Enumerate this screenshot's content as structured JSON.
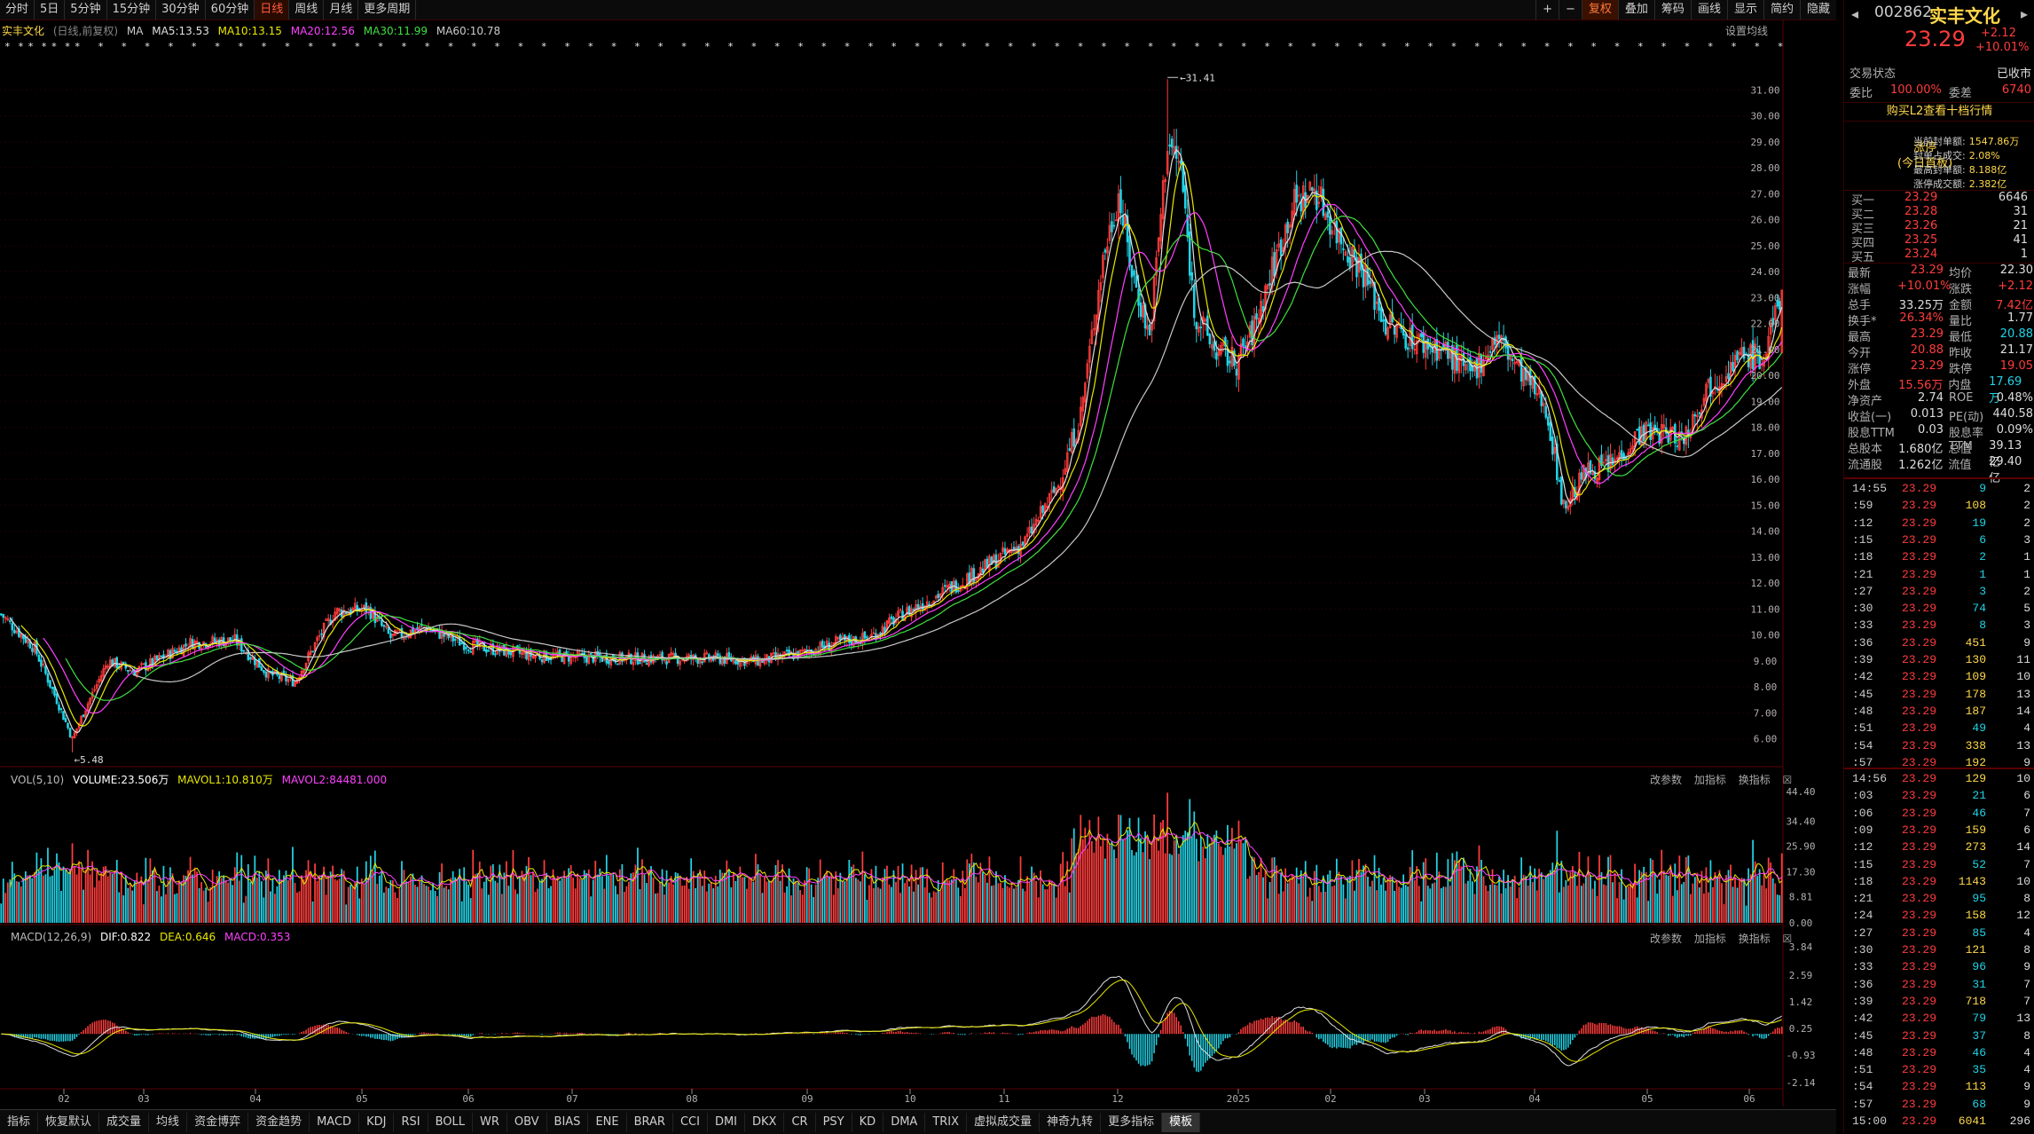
{
  "toolbar": {
    "periods": [
      "分时",
      "5日",
      "5分钟",
      "15分钟",
      "30分钟",
      "60分钟",
      "日线",
      "周线",
      "月线",
      "更多周期"
    ],
    "active_period": "日线",
    "tools": [
      "+",
      "−",
      "复权",
      "叠加",
      "筹码",
      "画线",
      "显示",
      "简约",
      "隐藏"
    ]
  },
  "stock": {
    "name": "实丰文化",
    "name_mode": "(日线,前复权)",
    "code": "002862",
    "price": "23.29",
    "change": "+2.12",
    "pct": "+10.01%"
  },
  "ma_legend": {
    "ma": "MA",
    "ma5": "MA5:13.53",
    "ma10": "MA10:13.15",
    "ma20": "MA20:12.56",
    "ma30": "MA30:11.99",
    "ma60": "MA60:10.78",
    "settings": "设置均线"
  },
  "price_chart": {
    "high_label": "31.41",
    "low_label": "5.48",
    "y_ticks": [
      "31.00",
      "30.00",
      "29.00",
      "28.00",
      "27.00",
      "26.00",
      "25.00",
      "24.00",
      "23.00",
      "22.00",
      "21.00",
      "20.00",
      "19.00",
      "18.00",
      "17.00",
      "16.00",
      "15.00",
      "14.00",
      "13.00",
      "12.00",
      "11.00",
      "10.00",
      "9.00",
      "8.00",
      "7.00",
      "6.00"
    ]
  },
  "vol_panel": {
    "title": "VOL(5,10)",
    "volume": "VOLUME:23.506万",
    "mavol1": "MAVOL1:10.810万",
    "mavol2": "MAVOL2:84481.000",
    "y_ticks": [
      "44.40",
      "34.40",
      "25.90",
      "17.30",
      "8.81",
      "0.00"
    ]
  },
  "macd_panel": {
    "title": "MACD(12,26,9)",
    "dif": "DIF:0.822",
    "dea": "DEA:0.646",
    "macd": "MACD:0.353",
    "y_ticks": [
      "3.84",
      "2.59",
      "1.42",
      "0.25",
      "-0.93",
      "-2.14"
    ]
  },
  "panel_tools": [
    "改参数",
    "加指标",
    "换指标"
  ],
  "x_axis": [
    "02",
    "03",
    "04",
    "05",
    "06",
    "07",
    "08",
    "09",
    "10",
    "11",
    "12",
    "2025",
    "02",
    "03",
    "04",
    "05",
    "06"
  ],
  "bottom_tabs": [
    "指标",
    "恢复默认",
    "成交量",
    "均线",
    "资金博弈",
    "资金趋势",
    "MACD",
    "KDJ",
    "RSI",
    "BOLL",
    "WR",
    "OBV",
    "BIAS",
    "ENE",
    "BRAR",
    "CCI",
    "DMI",
    "DKX",
    "CR",
    "PSY",
    "KD",
    "DMA",
    "TRIX",
    "虚拟成交量",
    "神奇九转",
    "更多指标",
    "模板"
  ],
  "bottom_active": "模板",
  "side": {
    "trade_state_label": "交易状态",
    "trade_state": "已收市",
    "weibi_label": "委比",
    "weibi": "100.00%",
    "weicha_label": "委差",
    "weicha": "6740",
    "l2_link": "购买L2查看十档行情",
    "limit_title": "涨停",
    "limit_sub": "(今日首板)",
    "seal": [
      [
        "当前封单额:",
        "1547.86万"
      ],
      [
        "封单占成交:",
        "2.08%"
      ],
      [
        "最高封单额:",
        "8.188亿"
      ],
      [
        "涨停成交额:",
        "2.382亿"
      ]
    ],
    "buys": [
      [
        "买一",
        "23.29",
        "6646"
      ],
      [
        "买二",
        "23.28",
        "31"
      ],
      [
        "买三",
        "23.26",
        "21"
      ],
      [
        "买四",
        "23.25",
        "41"
      ],
      [
        "买五",
        "23.24",
        "1"
      ]
    ],
    "quote": [
      [
        "最新",
        "23.29",
        "均价",
        "22.30"
      ],
      [
        "涨幅",
        "+10.01%",
        "涨跌",
        "+2.12"
      ],
      [
        "总手",
        "33.25万",
        "金额",
        "7.42亿"
      ],
      [
        "换手*",
        "26.34%",
        "量比",
        "1.77"
      ],
      [
        "最高",
        "23.29",
        "最低",
        "20.88"
      ],
      [
        "今开",
        "20.88",
        "昨收",
        "21.17"
      ],
      [
        "涨停",
        "23.29",
        "跌停",
        "19.05"
      ],
      [
        "外盘",
        "15.56万",
        "内盘",
        "17.69万"
      ],
      [
        "净资产",
        "2.74",
        "ROE",
        "0.48%"
      ],
      [
        "收益(一)",
        "0.013",
        "PE(动)",
        "440.58"
      ],
      [
        "股息TTM",
        "0.03",
        "股息率TTM",
        "0.09%"
      ],
      [
        "总股本",
        "1.680亿",
        "总值",
        "39.13亿"
      ],
      [
        "流通股",
        "1.262亿",
        "流值",
        "29.40亿"
      ]
    ],
    "ticks_a": [
      [
        "14:55",
        "23.29",
        "9",
        "2"
      ],
      [
        ":59",
        "23.29",
        "108",
        "2"
      ],
      [
        ":12",
        "23.29",
        "19",
        "2"
      ],
      [
        ":15",
        "23.29",
        "6",
        "3"
      ],
      [
        ":18",
        "23.29",
        "2",
        "1"
      ],
      [
        ":21",
        "23.29",
        "1",
        "1"
      ],
      [
        ":27",
        "23.29",
        "3",
        "2"
      ],
      [
        ":30",
        "23.29",
        "74",
        "5"
      ],
      [
        ":33",
        "23.29",
        "8",
        "3"
      ],
      [
        ":36",
        "23.29",
        "451",
        "9"
      ],
      [
        ":39",
        "23.29",
        "130",
        "11"
      ],
      [
        ":42",
        "23.29",
        "109",
        "10"
      ],
      [
        ":45",
        "23.29",
        "178",
        "13"
      ],
      [
        ":48",
        "23.29",
        "187",
        "14"
      ],
      [
        ":51",
        "23.29",
        "49",
        "4"
      ],
      [
        ":54",
        "23.29",
        "338",
        "13"
      ],
      [
        ":57",
        "23.29",
        "192",
        "9"
      ]
    ],
    "ticks_b": [
      [
        "14:56",
        "23.29",
        "129",
        "10"
      ],
      [
        ":03",
        "23.29",
        "21",
        "6"
      ],
      [
        ":06",
        "23.29",
        "46",
        "7"
      ],
      [
        ":09",
        "23.29",
        "159",
        "6"
      ],
      [
        ":12",
        "23.29",
        "273",
        "14"
      ],
      [
        ":15",
        "23.29",
        "52",
        "7"
      ],
      [
        ":18",
        "23.29",
        "1143",
        "10"
      ],
      [
        ":21",
        "23.29",
        "95",
        "8"
      ],
      [
        ":24",
        "23.29",
        "158",
        "12"
      ],
      [
        ":27",
        "23.29",
        "85",
        "4"
      ],
      [
        ":30",
        "23.29",
        "121",
        "8"
      ],
      [
        ":33",
        "23.29",
        "96",
        "9"
      ],
      [
        ":36",
        "23.29",
        "31",
        "7"
      ],
      [
        ":39",
        "23.29",
        "718",
        "7"
      ],
      [
        ":42",
        "23.29",
        "79",
        "13"
      ],
      [
        ":45",
        "23.29",
        "37",
        "8"
      ],
      [
        ":48",
        "23.29",
        "46",
        "4"
      ],
      [
        ":51",
        "23.29",
        "35",
        "4"
      ],
      [
        ":54",
        "23.29",
        "113",
        "9"
      ],
      [
        ":57",
        "23.29",
        "68",
        "9"
      ],
      [
        "15:00",
        "23.29",
        "6041",
        "296"
      ]
    ]
  },
  "colors": {
    "up": "#ff3c3c",
    "down": "#22d3e6",
    "ma5": "#e0e0e0",
    "ma10": "#e8e800",
    "ma20": "#ff40ff",
    "ma30": "#40e040",
    "ma60": "#c8c8c8",
    "bg": "#000000"
  }
}
